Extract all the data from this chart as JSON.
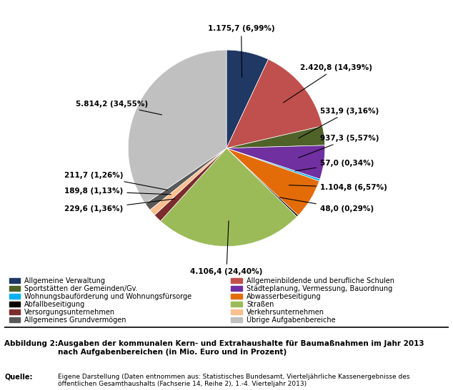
{
  "labels": [
    "Allgemeine Verwaltung",
    "Allgemeinbildende und berufliche Schulen",
    "Sportstätten der Gemeinden/Gv.",
    "Städteplanung, Vermessung, Bauordnung",
    "Wohnungsbauförderung und Wohnungsfürsorge",
    "Abwasserbeseitigung",
    "Abfallbeseitigung",
    "Straßen",
    "Versorgungsunternehmen",
    "Verkehrsunternehmen",
    "Allgemeines Grundvermögen",
    "Übrige Aufgabenbereiche"
  ],
  "values": [
    1175.7,
    2420.8,
    531.9,
    937.3,
    57.0,
    1104.8,
    48.0,
    4106.4,
    229.6,
    189.8,
    211.7,
    5814.2
  ],
  "percentages": [
    "6,99%",
    "14,39%",
    "3,16%",
    "5,57%",
    "0,34%",
    "6,57%",
    "0,29%",
    "24,40%",
    "1,36%",
    "1,13%",
    "1,26%",
    "34,55%"
  ],
  "display_values": [
    "1.175,7",
    "2.420,8",
    "531,9",
    "937,3",
    "57,0",
    "1.104,8",
    "48,0",
    "4.106,4",
    "229,6",
    "189,8",
    "211,7",
    "5.814,2"
  ],
  "colors": [
    "#1F3864",
    "#C0504D",
    "#4F6228",
    "#7030A0",
    "#00B0F0",
    "#E36C09",
    "#000000",
    "#9BBB59",
    "#7B2C2C",
    "#FABF8F",
    "#595959",
    "#C0C0C0"
  ],
  "legend_colors": [
    "#1F3864",
    "#C0504D",
    "#4F6228",
    "#7030A0",
    "#00B0F0",
    "#E36C09",
    "#000000",
    "#9BBB59",
    "#7B2C2C",
    "#FABF8F",
    "#595959",
    "#C0C0C0"
  ],
  "figure_title": "Abbildung 2:",
  "figure_subtitle": "Ausgaben der kommunalen Kern- und Extrahaushalte für Baumaßnahmen im Jahr 2013\nnach Aufgabenbereichen (in Mio. Euro und in Prozent)",
  "source_label": "Quelle:",
  "source_text": "Eigene Darstellung (Daten entnommen aus: Statistisches Bundesamt, Vierteljährliche Kassenergebnisse des\nöffentlichen Gesamthaushalts (Fachserie 14, Reihe 2), 1.-4. Vierteljahr 2013)",
  "startangle": 90,
  "background_color": "#FFFFFF"
}
